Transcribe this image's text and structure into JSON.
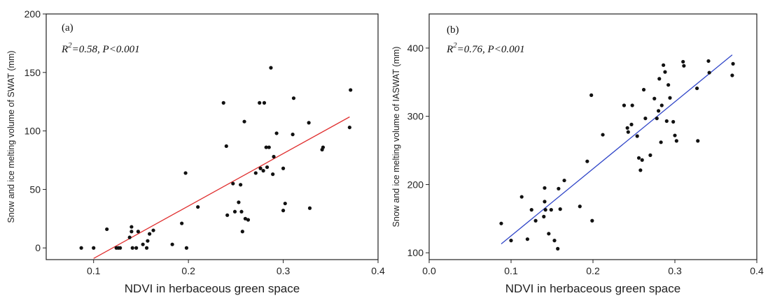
{
  "chart_data": [
    {
      "type": "scatter",
      "panel_label": "(a)",
      "annotation_r2": "R",
      "annotation_sup": "2",
      "annotation_rest": "=0.58, P<0.001",
      "xlabel": "NDVI in herbaceous green space",
      "ylabel": "Snow and ice melting volume of SWAT (mm)",
      "xlim": [
        0.05,
        0.4
      ],
      "ylim": [
        -10,
        200
      ],
      "xticks": [
        "0.1",
        "0.2",
        "0.3",
        "0.4"
      ],
      "yticks": [
        "0",
        "50",
        "100",
        "150",
        "200"
      ],
      "fit_color": "#e03030",
      "fit_line": [
        [
          0.1,
          -9
        ],
        [
          0.37,
          112
        ]
      ],
      "points": [
        [
          0.087,
          0
        ],
        [
          0.1,
          0
        ],
        [
          0.114,
          16
        ],
        [
          0.124,
          0
        ],
        [
          0.126,
          0
        ],
        [
          0.128,
          0
        ],
        [
          0.138,
          9
        ],
        [
          0.14,
          18
        ],
        [
          0.14,
          14
        ],
        [
          0.141,
          0
        ],
        [
          0.145,
          0
        ],
        [
          0.147,
          14
        ],
        [
          0.152,
          3
        ],
        [
          0.156,
          0
        ],
        [
          0.157,
          6
        ],
        [
          0.159,
          12
        ],
        [
          0.163,
          15
        ],
        [
          0.183,
          3
        ],
        [
          0.193,
          21
        ],
        [
          0.197,
          64
        ],
        [
          0.198,
          0
        ],
        [
          0.21,
          35
        ],
        [
          0.237,
          124
        ],
        [
          0.24,
          87
        ],
        [
          0.241,
          28
        ],
        [
          0.247,
          55
        ],
        [
          0.249,
          31
        ],
        [
          0.253,
          39
        ],
        [
          0.255,
          54
        ],
        [
          0.256,
          31
        ],
        [
          0.257,
          14
        ],
        [
          0.259,
          108
        ],
        [
          0.26,
          25
        ],
        [
          0.263,
          24
        ],
        [
          0.271,
          64
        ],
        [
          0.275,
          124
        ],
        [
          0.276,
          68
        ],
        [
          0.279,
          66
        ],
        [
          0.28,
          124
        ],
        [
          0.282,
          86
        ],
        [
          0.283,
          69
        ],
        [
          0.285,
          86
        ],
        [
          0.287,
          154
        ],
        [
          0.289,
          63
        ],
        [
          0.29,
          78
        ],
        [
          0.293,
          98
        ],
        [
          0.3,
          32
        ],
        [
          0.3,
          68
        ],
        [
          0.302,
          38
        ],
        [
          0.31,
          97
        ],
        [
          0.311,
          128
        ],
        [
          0.327,
          107
        ],
        [
          0.328,
          34
        ],
        [
          0.341,
          84
        ],
        [
          0.342,
          86
        ],
        [
          0.37,
          103
        ],
        [
          0.371,
          135
        ]
      ]
    },
    {
      "type": "scatter",
      "panel_label": "(b)",
      "annotation_r2": "R",
      "annotation_sup": "2",
      "annotation_rest": "=0.76, P<0.001",
      "xlabel": "NDVI in herbaceous green space",
      "ylabel": "Snow and ice melting volume of IASWAT (mm)",
      "xlim": [
        0.0,
        0.4
      ],
      "ylim": [
        90,
        450
      ],
      "xticks": [
        "0.0",
        "0.1",
        "0.2",
        "0.3",
        "0.4"
      ],
      "yticks": [
        "100",
        "200",
        "300",
        "400"
      ],
      "fit_color": "#2f45c8",
      "fit_line": [
        [
          0.088,
          113
        ],
        [
          0.37,
          390
        ]
      ],
      "points": [
        [
          0.088,
          143
        ],
        [
          0.1,
          118
        ],
        [
          0.113,
          182
        ],
        [
          0.12,
          120
        ],
        [
          0.125,
          163
        ],
        [
          0.13,
          147
        ],
        [
          0.14,
          153
        ],
        [
          0.141,
          175
        ],
        [
          0.141,
          195
        ],
        [
          0.142,
          163
        ],
        [
          0.146,
          128
        ],
        [
          0.149,
          163
        ],
        [
          0.153,
          118
        ],
        [
          0.157,
          106
        ],
        [
          0.158,
          194
        ],
        [
          0.16,
          164
        ],
        [
          0.165,
          206
        ],
        [
          0.184,
          168
        ],
        [
          0.193,
          234
        ],
        [
          0.198,
          331
        ],
        [
          0.199,
          147
        ],
        [
          0.212,
          273
        ],
        [
          0.238,
          316
        ],
        [
          0.242,
          283
        ],
        [
          0.243,
          277
        ],
        [
          0.247,
          288
        ],
        [
          0.248,
          316
        ],
        [
          0.254,
          271
        ],
        [
          0.256,
          239
        ],
        [
          0.258,
          221
        ],
        [
          0.26,
          236
        ],
        [
          0.262,
          339
        ],
        [
          0.264,
          297
        ],
        [
          0.27,
          243
        ],
        [
          0.275,
          326
        ],
        [
          0.278,
          297
        ],
        [
          0.28,
          308
        ],
        [
          0.281,
          355
        ],
        [
          0.283,
          262
        ],
        [
          0.284,
          316
        ],
        [
          0.286,
          375
        ],
        [
          0.288,
          365
        ],
        [
          0.29,
          293
        ],
        [
          0.292,
          346
        ],
        [
          0.294,
          327
        ],
        [
          0.298,
          292
        ],
        [
          0.3,
          272
        ],
        [
          0.302,
          264
        ],
        [
          0.31,
          380
        ],
        [
          0.311,
          374
        ],
        [
          0.327,
          341
        ],
        [
          0.328,
          264
        ],
        [
          0.341,
          381
        ],
        [
          0.342,
          364
        ],
        [
          0.37,
          360
        ],
        [
          0.371,
          377
        ]
      ]
    }
  ]
}
